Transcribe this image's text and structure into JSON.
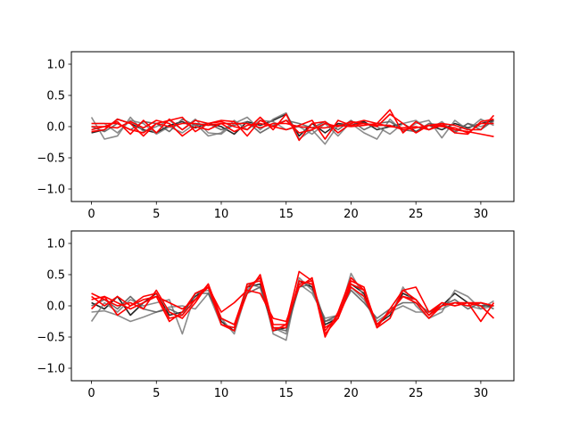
{
  "chart_data": [
    {
      "type": "line",
      "title": "",
      "xlabel": "",
      "ylabel": "",
      "xlim": [
        -1.55,
        32.55
      ],
      "ylim": [
        -1.2,
        1.2
      ],
      "xticks": [
        0,
        5,
        10,
        15,
        20,
        25,
        30
      ],
      "yticks": [
        -1.0,
        -0.5,
        0.0,
        0.5,
        1.0
      ],
      "xtick_labels": [
        "0",
        "5",
        "10",
        "15",
        "20",
        "25",
        "30"
      ],
      "ytick_labels": [
        "−1.0",
        "−0.5",
        "0.0",
        "0.5",
        "1.0"
      ],
      "grid": false,
      "x": [
        0,
        1,
        2,
        3,
        4,
        5,
        6,
        7,
        8,
        9,
        10,
        11,
        12,
        13,
        14,
        15,
        16,
        17,
        18,
        19,
        20,
        21,
        22,
        23,
        24,
        25,
        26,
        27,
        28,
        29,
        30,
        31
      ],
      "series": [
        {
          "color": "#000000",
          "values": [
            -0.1,
            -0.05,
            0.12,
            0.05,
            -0.05,
            -0.1,
            0.02,
            0.08,
            -0.02,
            0.05,
            0.0,
            -0.12,
            0.08,
            0.02,
            0.1,
            0.2,
            -0.15,
            0.05,
            -0.1,
            0.05,
            0.02,
            0.08,
            -0.05,
            0.0,
            0.05,
            -0.08,
            0.02,
            -0.05,
            0.05,
            -0.02,
            0.05,
            0.1
          ]
        },
        {
          "color": "#777777",
          "values": [
            0.15,
            -0.2,
            -0.15,
            0.15,
            -0.08,
            0.0,
            0.1,
            -0.05,
            0.12,
            -0.1,
            -0.12,
            0.05,
            0.15,
            -0.05,
            0.12,
            0.22,
            -0.2,
            -0.05,
            -0.28,
            0.02,
            0.05,
            -0.1,
            -0.2,
            0.12,
            -0.08,
            0.05,
            0.1,
            -0.18,
            0.1,
            -0.05,
            0.12,
            0.02
          ]
        },
        {
          "color": "#777777",
          "values": [
            0.05,
            0.05,
            -0.1,
            0.1,
            0.05,
            -0.12,
            0.0,
            -0.1,
            0.05,
            -0.15,
            -0.1,
            0.1,
            -0.05,
            0.1,
            0.08,
            -0.05,
            0.0,
            -0.12,
            0.05,
            -0.15,
            0.08,
            0.05,
            0.0,
            -0.12,
            0.05,
            0.1,
            -0.05,
            0.08,
            -0.1,
            0.05,
            0.0,
            0.08
          ]
        },
        {
          "color": "#555555",
          "values": [
            0.0,
            -0.08,
            0.05,
            -0.05,
            0.08,
            0.05,
            -0.08,
            0.12,
            0.02,
            0.05,
            -0.05,
            0.02,
            0.08,
            -0.1,
            0.02,
            0.1,
            0.05,
            -0.02,
            0.08,
            -0.05,
            0.1,
            -0.05,
            0.05,
            0.08,
            -0.05,
            -0.08,
            0.05,
            0.02,
            -0.08,
            0.05,
            -0.05,
            0.1
          ]
        },
        {
          "color": "#ff0000",
          "values": [
            0.0,
            0.0,
            0.08,
            -0.12,
            0.1,
            -0.1,
            0.12,
            -0.05,
            0.1,
            0.05,
            0.08,
            0.0,
            -0.05,
            0.15,
            -0.05,
            0.2,
            -0.22,
            0.05,
            0.08,
            -0.1,
            0.05,
            0.1,
            0.05,
            0.27,
            -0.1,
            0.08,
            -0.05,
            0.05,
            0.02,
            -0.05,
            -0.05,
            0.18
          ]
        },
        {
          "color": "#ff0000",
          "values": [
            -0.08,
            -0.05,
            0.12,
            0.05,
            -0.15,
            0.05,
            0.1,
            0.15,
            -0.08,
            0.05,
            0.1,
            0.08,
            -0.15,
            0.1,
            0.0,
            -0.05,
            0.02,
            0.1,
            -0.2,
            0.1,
            0.02,
            0.05,
            0.0,
            0.2,
            0.05,
            -0.1,
            0.02,
            0.05,
            -0.1,
            -0.12,
            0.08,
            0.12
          ]
        },
        {
          "color": "#ff0000",
          "values": [
            0.05,
            0.05,
            0.05,
            -0.05,
            -0.1,
            0.05,
            0.0,
            0.05,
            0.05,
            0.02,
            0.05,
            0.05,
            0.05,
            -0.02,
            0.05,
            0.05,
            0.0,
            -0.02,
            -0.02,
            0.02,
            0.0,
            0.02,
            0.05,
            0.0,
            -0.02,
            0.0,
            -0.05,
            0.02,
            -0.05,
            -0.08,
            -0.12,
            -0.16
          ]
        },
        {
          "color": "#ff0000",
          "values": [
            -0.05,
            0.0,
            -0.02,
            0.08,
            -0.02,
            0.1,
            0.05,
            -0.15,
            0.0,
            -0.05,
            0.05,
            -0.08,
            0.02,
            0.05,
            0.0,
            0.1,
            -0.1,
            -0.05,
            0.05,
            0.0,
            0.08,
            0.05,
            0.02,
            0.02,
            -0.05,
            -0.02,
            0.02,
            0.0,
            -0.02,
            -0.1,
            0.05,
            0.05
          ]
        }
      ]
    },
    {
      "type": "line",
      "title": "",
      "xlabel": "",
      "ylabel": "",
      "xlim": [
        -1.55,
        32.55
      ],
      "ylim": [
        -1.2,
        1.2
      ],
      "xticks": [
        0,
        5,
        10,
        15,
        20,
        25,
        30
      ],
      "yticks": [
        -1.0,
        -0.5,
        0.0,
        0.5,
        1.0
      ],
      "xtick_labels": [
        "0",
        "5",
        "10",
        "15",
        "20",
        "25",
        "30"
      ],
      "ytick_labels": [
        "−1.0",
        "−0.5",
        "0.0",
        "0.5",
        "1.0"
      ],
      "grid": false,
      "x": [
        0,
        1,
        2,
        3,
        4,
        5,
        6,
        7,
        8,
        9,
        10,
        11,
        12,
        13,
        14,
        15,
        16,
        17,
        18,
        19,
        20,
        21,
        22,
        23,
        24,
        25,
        26,
        27,
        28,
        29,
        30,
        31
      ],
      "series": [
        {
          "color": "#000000",
          "values": [
            0.05,
            -0.05,
            0.15,
            -0.15,
            0.05,
            0.2,
            -0.15,
            -0.1,
            0.15,
            0.3,
            -0.25,
            -0.4,
            0.3,
            0.35,
            -0.4,
            -0.35,
            0.4,
            0.3,
            -0.3,
            -0.2,
            0.35,
            0.2,
            -0.3,
            -0.15,
            0.2,
            0.1,
            -0.15,
            0.0,
            0.2,
            0.05,
            0.0,
            0.0
          ]
        },
        {
          "color": "#777777",
          "values": [
            -0.25,
            0.05,
            -0.1,
            0.1,
            0.0,
            0.05,
            0.1,
            -0.45,
            0.2,
            0.25,
            -0.2,
            -0.45,
            0.25,
            0.45,
            -0.45,
            -0.55,
            0.45,
            0.25,
            -0.25,
            -0.2,
            0.52,
            0.15,
            -0.35,
            -0.2,
            0.3,
            0.0,
            -0.2,
            -0.1,
            0.25,
            0.15,
            -0.05,
            0.08
          ]
        },
        {
          "color": "#777777",
          "values": [
            -0.1,
            -0.08,
            -0.15,
            -0.25,
            -0.18,
            -0.1,
            -0.02,
            0.0,
            -0.05,
            0.2,
            -0.3,
            -0.35,
            0.35,
            0.3,
            -0.35,
            -0.45,
            0.35,
            0.2,
            -0.2,
            -0.15,
            0.3,
            0.1,
            -0.25,
            -0.1,
            0.0,
            -0.1,
            -0.1,
            -0.05,
            0.05,
            0.0,
            -0.05,
            0.0
          ]
        },
        {
          "color": "#555555",
          "values": [
            0.0,
            0.1,
            -0.05,
            0.15,
            -0.05,
            -0.1,
            -0.05,
            -0.15,
            0.2,
            0.2,
            -0.2,
            -0.3,
            0.2,
            0.3,
            -0.35,
            -0.4,
            0.3,
            0.35,
            -0.25,
            -0.15,
            0.25,
            0.05,
            -0.2,
            -0.05,
            0.05,
            0.05,
            -0.1,
            0.0,
            0.1,
            -0.05,
            0.05,
            -0.05
          ]
        },
        {
          "color": "#ff0000",
          "values": [
            0.2,
            0.1,
            0.0,
            0.05,
            -0.05,
            0.25,
            -0.1,
            -0.2,
            0.05,
            0.35,
            -0.3,
            -0.35,
            0.2,
            0.5,
            -0.3,
            -0.3,
            0.55,
            0.4,
            -0.5,
            -0.1,
            0.45,
            0.25,
            -0.35,
            -0.2,
            0.25,
            0.3,
            -0.1,
            0.05,
            0.0,
            0.05,
            0.0,
            -0.2
          ]
        },
        {
          "color": "#ff0000",
          "values": [
            0.1,
            0.15,
            -0.15,
            0.0,
            0.15,
            0.2,
            -0.2,
            -0.15,
            0.1,
            0.35,
            -0.2,
            -0.3,
            0.3,
            0.45,
            -0.4,
            -0.3,
            0.35,
            0.4,
            -0.4,
            -0.15,
            0.35,
            0.25,
            -0.3,
            -0.1,
            0.15,
            0.1,
            -0.15,
            0.05,
            0.0,
            0.05,
            -0.25,
            0.05
          ]
        },
        {
          "color": "#ff0000",
          "values": [
            -0.05,
            0.15,
            0.05,
            -0.05,
            0.05,
            0.15,
            0.05,
            -0.05,
            0.1,
            0.3,
            -0.1,
            0.05,
            0.25,
            0.2,
            -0.2,
            -0.25,
            0.3,
            0.45,
            -0.45,
            -0.2,
            0.4,
            0.3,
            -0.35,
            -0.05,
            0.25,
            0.1,
            -0.15,
            0.0,
            0.05,
            0.05,
            0.05,
            0.0
          ]
        },
        {
          "color": "#ff0000",
          "values": [
            0.15,
            0.0,
            0.15,
            0.0,
            0.1,
            0.15,
            -0.25,
            -0.1,
            0.2,
            0.3,
            -0.3,
            -0.4,
            0.35,
            0.4,
            -0.35,
            -0.35,
            0.4,
            0.35,
            -0.35,
            -0.2,
            0.3,
            0.15,
            -0.3,
            -0.1,
            0.15,
            0.05,
            -0.2,
            0.0,
            0.05,
            0.0,
            0.05,
            0.0
          ]
        }
      ]
    }
  ]
}
